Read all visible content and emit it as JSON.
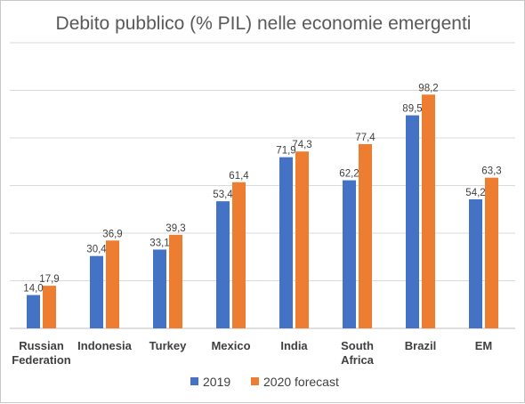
{
  "chart_data": {
    "type": "bar",
    "title": "Debito pubblico (% PIL) nelle economie emergenti",
    "categories": [
      [
        "Russian",
        "Federation"
      ],
      [
        "Indonesia"
      ],
      [
        "Turkey"
      ],
      [
        "Mexico"
      ],
      [
        "India"
      ],
      [
        "South",
        "Africa"
      ],
      [
        "Brazil"
      ],
      [
        "EM"
      ]
    ],
    "series": [
      {
        "name": "2019",
        "color": "#4472c4",
        "values": [
          14.0,
          30.4,
          33.1,
          53.4,
          71.9,
          62.2,
          89.5,
          54.2
        ],
        "labels": [
          "14,0",
          "30,4",
          "33,1",
          "53,4",
          "71,9",
          "62,2",
          "89,5",
          "54,2"
        ]
      },
      {
        "name": "2020 forecast",
        "color": "#ed7d31",
        "values": [
          17.9,
          36.9,
          39.3,
          61.4,
          74.3,
          77.4,
          98.2,
          63.3
        ],
        "labels": [
          "17,9",
          "36,9",
          "39,3",
          "61,4",
          "74,3",
          "77,4",
          "98,2",
          "63,3"
        ]
      }
    ],
    "ylim": [
      0,
      120
    ],
    "grid": true,
    "y_axis_labels_shown": false,
    "legend_position": "bottom"
  }
}
